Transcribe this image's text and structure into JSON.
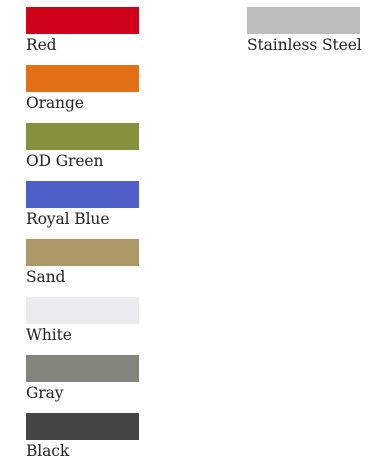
{
  "swatches_left": [
    {
      "label": "Red",
      "color": "#d0021b"
    },
    {
      "label": "Orange",
      "color": "#e27017"
    },
    {
      "label": "OD Green",
      "color": "#86913d"
    },
    {
      "label": "Royal Blue",
      "color": "#4f5fc9"
    },
    {
      "label": "Sand",
      "color": "#ad9869"
    },
    {
      "label": "White",
      "color": "#ebebed"
    },
    {
      "label": "Gray",
      "color": "#83847c"
    },
    {
      "label": "Black",
      "color": "#454545"
    }
  ],
  "swatches_right": [
    {
      "label": "Stainless Steel",
      "color": "#bcbcbc"
    }
  ]
}
